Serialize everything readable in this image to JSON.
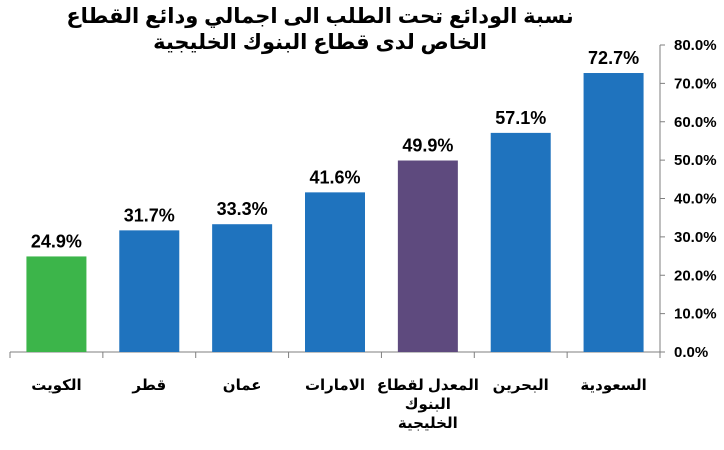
{
  "chart_data": {
    "type": "bar",
    "title": "نسبة الودائع تحت الطلب الى اجمالي ودائع القطاع الخاص لدى قطاع البنوك الخليجية",
    "categories": [
      [
        "الكويت"
      ],
      [
        "قطر"
      ],
      [
        "عمان"
      ],
      [
        "الامارات"
      ],
      [
        "المعدل لقطاع",
        "البنوك",
        "الخليجية"
      ],
      [
        "البحرين"
      ],
      [
        "السعودية"
      ]
    ],
    "values": [
      24.9,
      31.7,
      33.3,
      41.6,
      49.9,
      57.1,
      72.7
    ],
    "data_labels": [
      "24.9%",
      "31.7%",
      "33.3%",
      "41.6%",
      "49.9%",
      "57.1%",
      "72.7%"
    ],
    "bar_colors": [
      "#3cb54a",
      "#1f73be",
      "#1f73be",
      "#1f73be",
      "#5e4a7e",
      "#1f73be",
      "#1f73be"
    ],
    "ylim": [
      0,
      80
    ],
    "y_ticks": [
      "0.0%",
      "10.0%",
      "20.0%",
      "30.0%",
      "40.0%",
      "50.0%",
      "60.0%",
      "70.0%",
      "80.0%"
    ],
    "y_axis_side": "right",
    "grid": false,
    "xlabel": "",
    "ylabel": ""
  }
}
